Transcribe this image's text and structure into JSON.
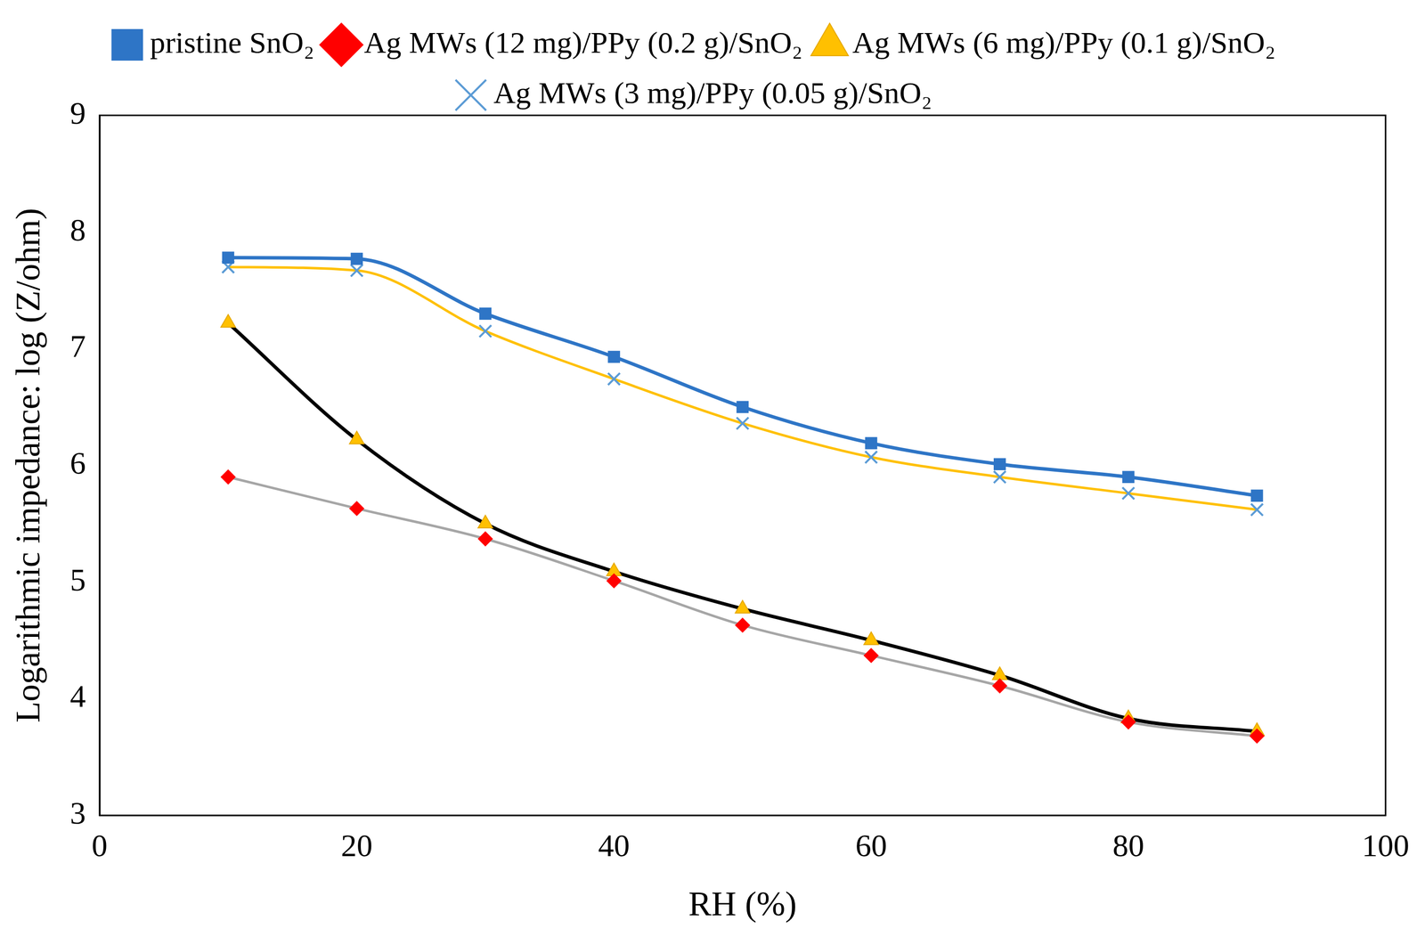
{
  "chart_data": {
    "type": "line",
    "x_label": "RH (%)",
    "y_label": "Logarithmic impedance: log (Z/ohm)",
    "x": [
      10,
      20,
      30,
      40,
      50,
      60,
      70,
      80,
      90
    ],
    "series": [
      {
        "name": "pristine SnO₂",
        "color": "#2e75c6",
        "marker": "square",
        "values": [
          7.78,
          7.77,
          7.3,
          6.93,
          6.5,
          6.19,
          6.01,
          5.9,
          5.74
        ]
      },
      {
        "name": "Ag MWs (12 mg)/PPy (0.2 g)/SnO₂",
        "color": "#a6a6a6",
        "marker": "diamond",
        "values": [
          5.9,
          5.63,
          5.37,
          5.01,
          4.63,
          4.37,
          4.11,
          3.8,
          3.68
        ]
      },
      {
        "name": "Ag MWs (6 mg)/PPy (0.1 g)/SnO₂",
        "color": "#000000",
        "marker": "triangle",
        "values": [
          7.22,
          6.22,
          5.5,
          5.09,
          4.77,
          4.5,
          4.2,
          3.83,
          3.72
        ]
      },
      {
        "name": "Ag MWs (3 mg)/PPy (0.05 g)/SnO₂",
        "color": "#ffc000",
        "marker": "x",
        "values": [
          7.7,
          7.67,
          7.15,
          6.74,
          6.36,
          6.07,
          5.9,
          5.76,
          5.62
        ]
      }
    ],
    "xlim": [
      0,
      100
    ],
    "xticks": [
      0,
      20,
      40,
      60,
      80,
      100
    ],
    "ylim": [
      3,
      9
    ],
    "yticks": [
      3,
      4,
      5,
      6,
      7,
      8,
      9
    ],
    "grid": false,
    "legend": "top"
  }
}
